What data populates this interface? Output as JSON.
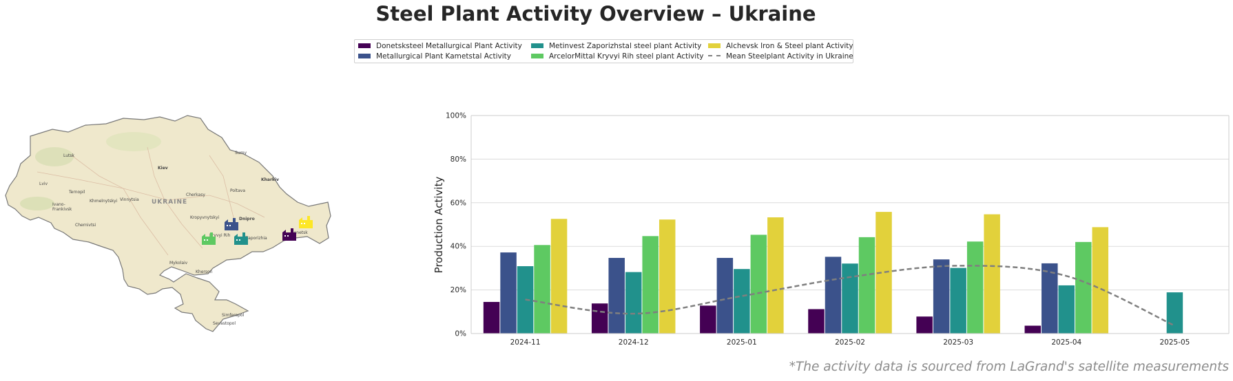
{
  "title": "Steel Plant Activity Overview – Ukraine",
  "footnote": "*The activity data is sourced from LaGrand's satellite measurements",
  "legend": [
    {
      "label": "Donetsksteel Metallurgical Plant Activity",
      "color": "#440154",
      "kind": "bar"
    },
    {
      "label": "Metallurgical Plant Kametstal Activity",
      "color": "#3b528b",
      "kind": "bar"
    },
    {
      "label": "Metinvest Zaporizhstal steel plant Activity",
      "color": "#21918c",
      "kind": "bar"
    },
    {
      "label": "ArcelorMittal Kryvyi Rih steel plant Activity",
      "color": "#5ec962",
      "kind": "bar"
    },
    {
      "label": "Alchevsk Iron & Steel plant Activity",
      "color": "#fde725",
      "kind": "bar"
    },
    {
      "label": "Mean Steelplant Activity in Ukraine",
      "color": "#7f7f7f",
      "kind": "line"
    }
  ],
  "map": {
    "country_label": "UKRAINE",
    "cities": [
      "Lutsk",
      "Kiev",
      "Sumy",
      "Kharkiv",
      "Lviv",
      "Ternopil",
      "Poltava",
      "Cherkasy",
      "Khmelnytskyi",
      "Vinnytsia",
      "Ivano-",
      "Frankivsk",
      "Kropyvnytskyi",
      "Dnipro",
      "Chernivtsi",
      "Kryvyi Rih",
      "Zaporizhia",
      "Donetsk",
      "Mykolaiv",
      "Kherson",
      "Simferopol",
      "Sevastopol"
    ],
    "plant_markers": [
      {
        "name": "Donetsksteel",
        "color": "#440154"
      },
      {
        "name": "Kametstal",
        "color": "#3b528b"
      },
      {
        "name": "Zaporizhstal",
        "color": "#21918c"
      },
      {
        "name": "Kryvyi Rih",
        "color": "#5ec962"
      },
      {
        "name": "Alchevsk",
        "color": "#fde725"
      }
    ]
  },
  "chart_data": {
    "type": "bar",
    "ylabel": "Production Activity",
    "xlabel": "",
    "ylim": [
      0,
      100
    ],
    "yticks": [
      "0%",
      "20%",
      "40%",
      "60%",
      "80%",
      "100%"
    ],
    "grid": true,
    "categories": [
      "2024-11",
      "2024-12",
      "2025-01",
      "2025-02",
      "2025-03",
      "2025-04",
      "2025-05"
    ],
    "series": [
      {
        "name": "Donetsksteel Metallurgical Plant Activity",
        "color": "#440154",
        "values": [
          14.5,
          13.8,
          12.8,
          11.2,
          7.8,
          3.6,
          null
        ]
      },
      {
        "name": "Metallurgical Plant Kametstal Activity",
        "color": "#3b528b",
        "values": [
          37.2,
          34.7,
          34.7,
          35.2,
          34.0,
          32.2,
          null
        ]
      },
      {
        "name": "Metinvest Zaporizhstal steel plant Activity",
        "color": "#21918c",
        "values": [
          30.9,
          28.2,
          29.6,
          32.1,
          30.1,
          22.1,
          18.9
        ]
      },
      {
        "name": "ArcelorMittal Kryvyi Rih steel plant Activity",
        "color": "#5ec962",
        "values": [
          40.6,
          44.7,
          45.3,
          44.2,
          42.2,
          42.0,
          null
        ]
      },
      {
        "name": "Alchevsk Iron & Steel plant Activity",
        "color": "#e2d13b",
        "values": [
          52.6,
          52.3,
          53.3,
          55.8,
          54.7,
          48.8,
          null
        ]
      },
      {
        "name": "Mean Steelplant Activity in Ukraine",
        "color": "#7f7f7f",
        "kind": "line",
        "values": [
          15.6,
          9.1,
          17.2,
          25.9,
          31.1,
          26.4,
          3.6
        ]
      }
    ]
  }
}
